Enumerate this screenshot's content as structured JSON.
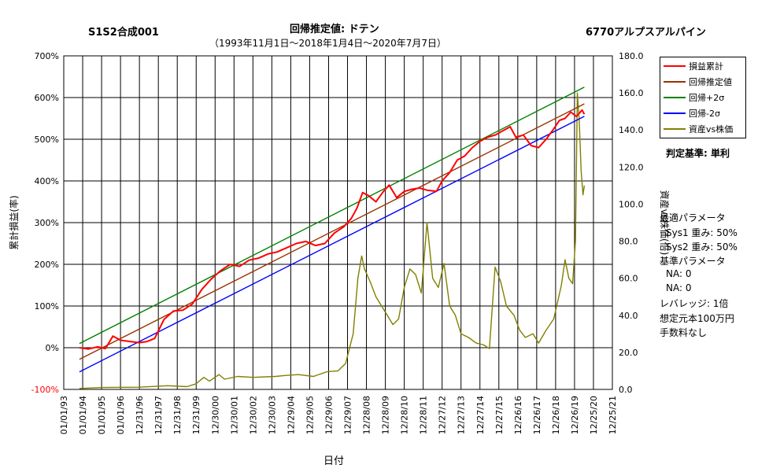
{
  "header": {
    "left_title": "S1S2合成001",
    "center_title": "回帰推定値: ドテン",
    "subtitle": "（1993年11月1日～2018年1月4日～2020年7月7日）",
    "right_title": "6770アルプスアルパイン"
  },
  "legend": {
    "items": [
      {
        "label": "損益累計",
        "color": "#ff0000"
      },
      {
        "label": "回帰推定値",
        "color": "#993300"
      },
      {
        "label": "回帰+2σ",
        "color": "#008000"
      },
      {
        "label": "回帰-2σ",
        "color": "#0000ff"
      },
      {
        "label": "資産vs株価",
        "color": "#808000"
      }
    ]
  },
  "criterion": "判定基準: 単利",
  "params": [
    "最適パラメータ",
    "Sys1 重み: 50%",
    "Sys2 重み: 50%",
    "基準パラメータ",
    "NA: 0",
    "NA: 0",
    "レバレッジ: 1倍",
    "想定元本100万円",
    "手数料なし"
  ],
  "chart_data": {
    "type": "line",
    "xlabel": "日付",
    "ylabel_left": "累計損益(率)",
    "ylabel_right": "資産vs株価(倍)",
    "ylim_left": [
      -100,
      700
    ],
    "ylim_right": [
      0,
      180
    ],
    "yticks_left": [
      "-100%",
      "0%",
      "100%",
      "200%",
      "300%",
      "400%",
      "500%",
      "600%",
      "700%"
    ],
    "yticks_right": [
      "0.0",
      "20.0",
      "40.0",
      "60.0",
      "80.0",
      "100.0",
      "120.0",
      "140.0",
      "160.0",
      "180.0"
    ],
    "x_ticks": [
      "01/01/93",
      "01/01/94",
      "01/01/95",
      "01/01/96",
      "12/31/96",
      "12/31/97",
      "12/31/98",
      "12/31/99",
      "12/30/00",
      "12/30/01",
      "12/30/02",
      "12/30/03",
      "12/29/04",
      "12/29/05",
      "12/29/06",
      "12/29/07",
      "12/28/08",
      "12/28/09",
      "12/28/10",
      "12/28/11",
      "12/27/12",
      "12/27/13",
      "12/27/14",
      "12/27/15",
      "12/26/16",
      "12/26/17",
      "12/26/18",
      "12/26/19",
      "12/25/20",
      "12/25/21"
    ],
    "x_range": [
      1993.0,
      2022.0
    ],
    "grid": true,
    "series": [
      {
        "name": "損益累計",
        "axis": "left",
        "color": "#ff0000",
        "points": [
          [
            1993.83,
            0
          ],
          [
            1994.3,
            -3
          ],
          [
            1994.8,
            2
          ],
          [
            1995.2,
            -2
          ],
          [
            1995.6,
            28
          ],
          [
            1996.0,
            18
          ],
          [
            1996.5,
            15
          ],
          [
            1997.0,
            12
          ],
          [
            1997.4,
            15
          ],
          [
            1997.8,
            22
          ],
          [
            1998.3,
            68
          ],
          [
            1998.8,
            88
          ],
          [
            1999.3,
            90
          ],
          [
            1999.8,
            105
          ],
          [
            2000.3,
            140
          ],
          [
            2000.8,
            165
          ],
          [
            2001.3,
            185
          ],
          [
            2001.8,
            200
          ],
          [
            2002.3,
            195
          ],
          [
            2002.8,
            210
          ],
          [
            2003.3,
            215
          ],
          [
            2003.8,
            225
          ],
          [
            2004.3,
            230
          ],
          [
            2004.8,
            240
          ],
          [
            2005.3,
            250
          ],
          [
            2005.8,
            255
          ],
          [
            2006.3,
            245
          ],
          [
            2006.8,
            250
          ],
          [
            2007.3,
            275
          ],
          [
            2007.8,
            290
          ],
          [
            2008.2,
            310
          ],
          [
            2008.5,
            335
          ],
          [
            2008.8,
            372
          ],
          [
            2009.1,
            365
          ],
          [
            2009.5,
            350
          ],
          [
            2009.9,
            375
          ],
          [
            2010.2,
            390
          ],
          [
            2010.6,
            360
          ],
          [
            2011.0,
            375
          ],
          [
            2011.4,
            380
          ],
          [
            2011.8,
            383
          ],
          [
            2012.2,
            378
          ],
          [
            2012.7,
            375
          ],
          [
            2013.0,
            400
          ],
          [
            2013.4,
            420
          ],
          [
            2013.8,
            450
          ],
          [
            2014.2,
            460
          ],
          [
            2014.6,
            480
          ],
          [
            2015.0,
            495
          ],
          [
            2015.4,
            505
          ],
          [
            2015.8,
            510
          ],
          [
            2016.2,
            520
          ],
          [
            2016.6,
            530
          ],
          [
            2016.9,
            505
          ],
          [
            2017.3,
            510
          ],
          [
            2017.7,
            485
          ],
          [
            2018.1,
            480
          ],
          [
            2018.5,
            500
          ],
          [
            2018.9,
            525
          ],
          [
            2019.2,
            545
          ],
          [
            2019.5,
            550
          ],
          [
            2019.8,
            565
          ],
          [
            2020.1,
            555
          ],
          [
            2020.4,
            570
          ],
          [
            2020.52,
            560
          ]
        ]
      },
      {
        "name": "回帰推定値",
        "axis": "left",
        "color": "#993300",
        "points": [
          [
            1993.83,
            -28
          ],
          [
            2020.52,
            585
          ]
        ]
      },
      {
        "name": "回帰+2σ",
        "axis": "left",
        "color": "#008000",
        "points": [
          [
            1993.83,
            10
          ],
          [
            2020.52,
            625
          ]
        ]
      },
      {
        "name": "回帰-2σ",
        "axis": "left",
        "color": "#0000ff",
        "points": [
          [
            1993.83,
            -58
          ],
          [
            2020.52,
            555
          ]
        ]
      },
      {
        "name": "資産vs株価",
        "axis": "right",
        "color": "#808000",
        "points": [
          [
            1993.83,
            0.5
          ],
          [
            1995.0,
            1.0
          ],
          [
            1997.0,
            1.2
          ],
          [
            1998.5,
            2.0
          ],
          [
            1999.5,
            1.5
          ],
          [
            2000.0,
            3.0
          ],
          [
            2000.4,
            6.5
          ],
          [
            2000.7,
            4.5
          ],
          [
            2001.2,
            8.0
          ],
          [
            2001.5,
            5.5
          ],
          [
            2002.2,
            7.0
          ],
          [
            2003.0,
            6.5
          ],
          [
            2004.2,
            7.0
          ],
          [
            2004.7,
            7.5
          ],
          [
            2005.4,
            8.0
          ],
          [
            2006.2,
            7.0
          ],
          [
            2006.9,
            9.5
          ],
          [
            2007.5,
            10.0
          ],
          [
            2007.9,
            14.0
          ],
          [
            2008.3,
            30.0
          ],
          [
            2008.55,
            60.0
          ],
          [
            2008.75,
            72.0
          ],
          [
            2008.9,
            65.0
          ],
          [
            2009.2,
            58.0
          ],
          [
            2009.5,
            50.0
          ],
          [
            2009.8,
            45.0
          ],
          [
            2010.1,
            40.0
          ],
          [
            2010.4,
            35.0
          ],
          [
            2010.7,
            38.0
          ],
          [
            2011.0,
            55.0
          ],
          [
            2011.3,
            65.0
          ],
          [
            2011.6,
            62.0
          ],
          [
            2011.9,
            52.0
          ],
          [
            2012.2,
            90.0
          ],
          [
            2012.5,
            60.0
          ],
          [
            2012.8,
            55.0
          ],
          [
            2013.1,
            68.0
          ],
          [
            2013.4,
            45.0
          ],
          [
            2013.7,
            40.0
          ],
          [
            2014.0,
            30.0
          ],
          [
            2014.4,
            28.0
          ],
          [
            2014.8,
            25.0
          ],
          [
            2015.2,
            24.0
          ],
          [
            2015.5,
            22.0
          ],
          [
            2015.8,
            66.0
          ],
          [
            2016.1,
            58.0
          ],
          [
            2016.4,
            45.0
          ],
          [
            2016.8,
            40.0
          ],
          [
            2017.1,
            32.0
          ],
          [
            2017.4,
            28.0
          ],
          [
            2017.8,
            30.0
          ],
          [
            2018.1,
            25.0
          ],
          [
            2018.5,
            32.0
          ],
          [
            2018.9,
            38.0
          ],
          [
            2019.3,
            56.0
          ],
          [
            2019.5,
            70.0
          ],
          [
            2019.7,
            60.0
          ],
          [
            2019.9,
            57.0
          ],
          [
            2020.05,
            80.0
          ],
          [
            2020.15,
            160.0
          ],
          [
            2020.25,
            145.0
          ],
          [
            2020.35,
            118.0
          ],
          [
            2020.45,
            105.0
          ],
          [
            2020.52,
            110.0
          ]
        ]
      }
    ]
  }
}
